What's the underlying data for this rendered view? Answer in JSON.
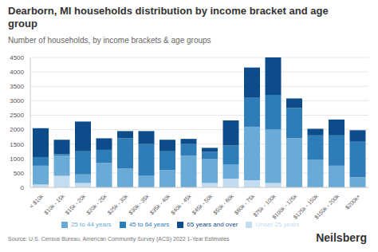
{
  "chart_data": {
    "type": "bar",
    "title": "Dearborn, MI households distribution by income bracket and age group",
    "subtitle": "Number of households, by income brackets & age groups",
    "source": "Source: U.S. Census Bureau, American Community Survey (ACS) 2022 1-Year Estimates",
    "watermark": "Neilsberg",
    "stacked": true,
    "grid": true,
    "legend": "bottom",
    "categories": [
      "< $10k",
      "$10k - 15k",
      "$15k - 20k",
      "$20k - 25k",
      "$25k - 30k",
      "$30k - 35k",
      "$35k - 40k",
      "$40k - 45k",
      "$45k - 50k",
      "$50k - 60k",
      "$60k - 75k",
      "$75k - 100k",
      "$100k - 125k",
      "$125k - 150k",
      "$150k - 200k",
      "$200k+"
    ],
    "ylim": [
      0,
      4500
    ],
    "yticks": [
      0,
      500,
      1000,
      1500,
      2000,
      2500,
      3000,
      3500,
      4000,
      4500
    ],
    "series": [
      {
        "name": "Under 25 years",
        "color": "#c4dcef",
        "values": [
          100,
          400,
          150,
          0,
          0,
          0,
          0,
          0,
          150,
          300,
          250,
          150,
          0,
          0,
          0,
          0
        ]
      },
      {
        "name": "25 to 44 years",
        "color": "#6aaad6",
        "values": [
          650,
          700,
          300,
          850,
          650,
          400,
          600,
          1100,
          830,
          500,
          1850,
          1850,
          1700,
          950,
          750,
          350
        ]
      },
      {
        "name": "45 to 64 years",
        "color": "#2e7cb8",
        "values": [
          300,
          50,
          800,
          450,
          1050,
          1100,
          650,
          400,
          250,
          650,
          1000,
          1200,
          1050,
          850,
          1050,
          1250
        ]
      },
      {
        "name": "65 years and over",
        "color": "#0c4c8a",
        "values": [
          1000,
          500,
          1030,
          400,
          250,
          450,
          400,
          180,
          140,
          870,
          1050,
          1300,
          330,
          230,
          550,
          380
        ]
      }
    ]
  }
}
